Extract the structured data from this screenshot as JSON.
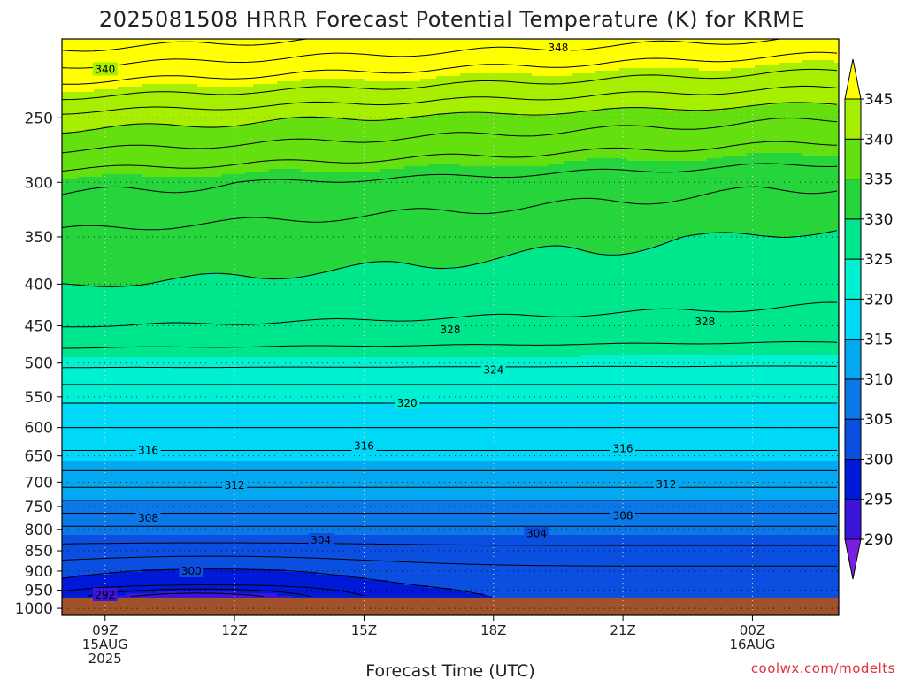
{
  "title": "2025081508 HRRR Forecast Potential Temperature (K) for KRME",
  "credit": "coolwx.com/modelts",
  "colors": {
    "ground": "#a0522d",
    "levels": [
      "#7a1fe0",
      "#3a14d8",
      "#0018d8",
      "#0a4fe0",
      "#0c78e8",
      "#04a8f0",
      "#00d8f8",
      "#00f0d2",
      "#00e68c",
      "#26d43c",
      "#64e010",
      "#a8ee00",
      "#e8f800",
      "#ffff00"
    ]
  },
  "chart_data": {
    "type": "contour",
    "title": "2025081508 HRRR Forecast Potential Temperature (K) for KRME",
    "xlabel": "Forecast Time (UTC)",
    "ylabel": "",
    "x_ticks": [
      {
        "hour": 9,
        "lines": [
          "09Z",
          "15AUG",
          "2025"
        ]
      },
      {
        "hour": 12,
        "lines": [
          "12Z"
        ]
      },
      {
        "hour": 15,
        "lines": [
          "15Z"
        ]
      },
      {
        "hour": 18,
        "lines": [
          "18Z"
        ]
      },
      {
        "hour": 21,
        "lines": [
          "21Z"
        ]
      },
      {
        "hour": 24,
        "lines": [
          "00Z",
          "16AUG"
        ]
      }
    ],
    "x_range_hours": [
      8,
      26
    ],
    "y_ticks": [
      250,
      300,
      350,
      400,
      450,
      500,
      550,
      600,
      650,
      700,
      750,
      800,
      850,
      900,
      950,
      1000
    ],
    "y_scale": "log-pressure",
    "y_range_hPa": [
      200,
      1020
    ],
    "surface_pressure_hPa": 970,
    "colorbar": {
      "labels": [
        345,
        340,
        335,
        330,
        325,
        320,
        315,
        310,
        305,
        300,
        295,
        290
      ],
      "bounds": [
        290,
        295,
        300,
        305,
        310,
        315,
        320,
        325,
        330,
        335,
        340,
        345
      ]
    },
    "contour_interval_K": 2,
    "contour_labels": [
      {
        "value": 348,
        "hour": 19.5,
        "p": 205
      },
      {
        "value": 340,
        "hour": 9.0,
        "p": 218
      },
      {
        "value": 328,
        "hour": 17.0,
        "p": 455
      },
      {
        "value": 328,
        "hour": 22.9,
        "p": 445
      },
      {
        "value": 324,
        "hour": 18.0,
        "p": 510
      },
      {
        "value": 320,
        "hour": 16.0,
        "p": 560
      },
      {
        "value": 316,
        "hour": 10.0,
        "p": 640
      },
      {
        "value": 316,
        "hour": 15.0,
        "p": 632
      },
      {
        "value": 316,
        "hour": 21.0,
        "p": 637
      },
      {
        "value": 312,
        "hour": 12.0,
        "p": 706
      },
      {
        "value": 312,
        "hour": 22.0,
        "p": 705
      },
      {
        "value": 308,
        "hour": 10.0,
        "p": 775
      },
      {
        "value": 308,
        "hour": 21.0,
        "p": 770
      },
      {
        "value": 304,
        "hour": 14.0,
        "p": 825
      },
      {
        "value": 304,
        "hour": 19.0,
        "p": 810
      },
      {
        "value": 300,
        "hour": 11.0,
        "p": 900
      },
      {
        "value": 292,
        "hour": 9.0,
        "p": 963
      }
    ]
  }
}
